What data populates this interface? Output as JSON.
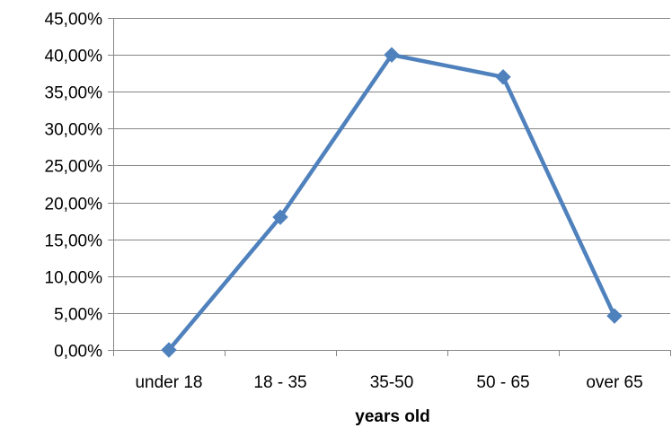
{
  "chart_data": {
    "type": "line",
    "title": "",
    "xlabel": "years old",
    "ylabel": "",
    "categories": [
      "under 18",
      "18 - 35",
      "35-50",
      "50 - 65",
      "over 65"
    ],
    "series": [
      {
        "values": [
          0.0,
          18.0,
          40.0,
          37.0,
          4.6
        ],
        "color": "#4F81BD",
        "marker": "diamond"
      }
    ],
    "ylim": [
      0,
      45
    ],
    "yticks": [
      0,
      5,
      10,
      15,
      20,
      25,
      30,
      35,
      40,
      45
    ],
    "ytick_labels": [
      "0,00%",
      "5,00%",
      "10,00%",
      "15,00%",
      "20,00%",
      "25,00%",
      "30,00%",
      "35,00%",
      "40,00%",
      "45,00%"
    ],
    "grid": true,
    "legend": "none"
  }
}
